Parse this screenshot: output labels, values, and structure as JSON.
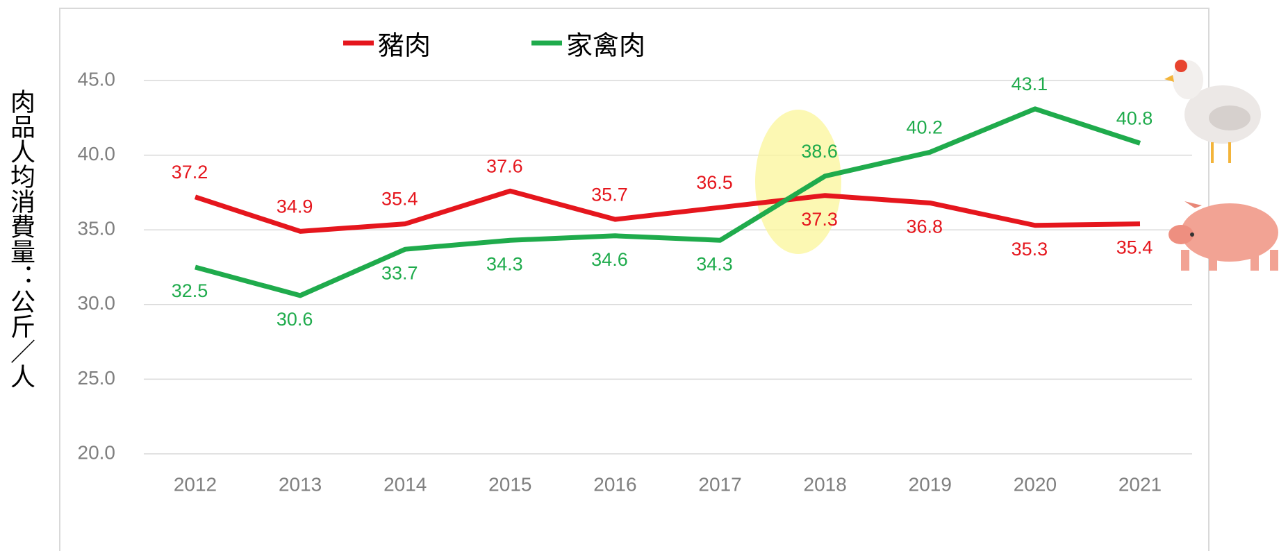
{
  "chart_data": {
    "type": "line",
    "y_label": "肉品人均消費量：公斤／人",
    "categories": [
      "2012",
      "2013",
      "2014",
      "2015",
      "2016",
      "2017",
      "2018",
      "2019",
      "2020",
      "2021"
    ],
    "series": [
      {
        "name": "豬肉",
        "color": "#e5161d",
        "values": [
          37.2,
          34.9,
          35.4,
          37.6,
          35.7,
          36.5,
          37.3,
          36.8,
          35.3,
          35.4
        ]
      },
      {
        "name": "家禽肉",
        "color": "#1fab4c",
        "values": [
          32.5,
          30.6,
          33.7,
          34.3,
          34.6,
          34.3,
          38.6,
          40.2,
          43.1,
          40.8
        ]
      }
    ],
    "ylim": [
      20,
      45
    ],
    "yticks": [
      {
        "value": 20,
        "label": "20.0"
      },
      {
        "value": 25,
        "label": "25.0"
      },
      {
        "value": 30,
        "label": "30.0"
      },
      {
        "value": 35,
        "label": "35.0"
      },
      {
        "value": 40,
        "label": "40.0"
      },
      {
        "value": 45,
        "label": "45.0"
      }
    ],
    "grid": true
  }
}
